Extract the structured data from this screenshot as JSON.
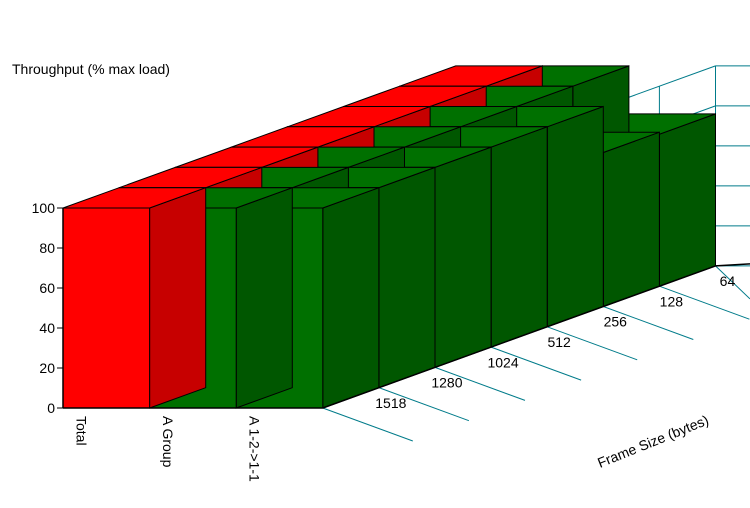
{
  "chart_data": {
    "type": "bar",
    "title": "",
    "ylabel": "Throughput (% max load)",
    "zlabel": "Frame Size (bytes)",
    "ylim": [
      0,
      100
    ],
    "yticks": [
      0,
      20,
      40,
      60,
      80,
      100
    ],
    "frame_sizes": [
      "1518",
      "1280",
      "1024",
      "512",
      "256",
      "128",
      "64"
    ],
    "series": [
      {
        "name": "Total",
        "values": [
          100,
          100,
          100,
          100,
          100,
          100,
          100
        ]
      },
      {
        "name": "A Group",
        "values": [
          100,
          100,
          100,
          100,
          100,
          100,
          100
        ]
      },
      {
        "name": "A 1-2->1-1",
        "values": [
          100,
          100,
          100,
          100,
          100,
          77,
          76
        ]
      }
    ],
    "colors": {
      "Total": "#ff0000",
      "A Group": "#007000",
      "A 1-2->1-1": "#007000",
      "grid": "#007b8a"
    }
  }
}
